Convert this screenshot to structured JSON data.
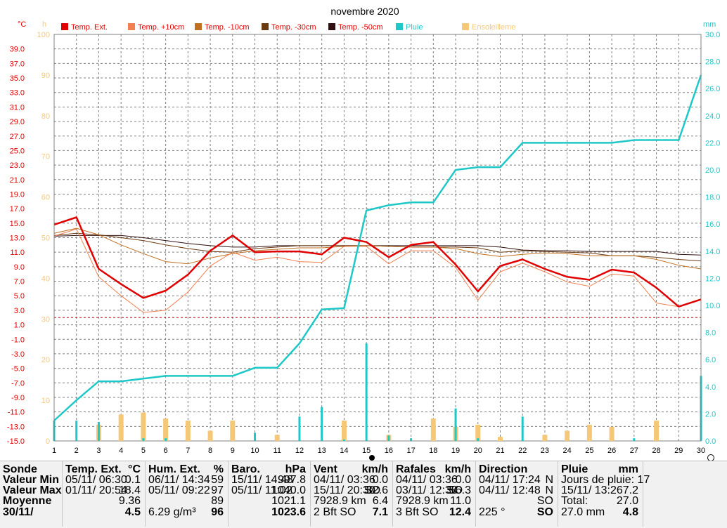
{
  "title": "novembre 2020",
  "colors": {
    "temp_ext": "#e00000",
    "temp_p10": "#f08050",
    "temp_m10": "#c07020",
    "temp_m30": "#6a3a10",
    "temp_m50": "#301010",
    "pluie": "#1ec8c8",
    "soleil": "#f5c878",
    "grid": "#808080",
    "left_axis": "#e00000",
    "sun_axis": "#f5c878",
    "right_axis": "#1ec8c8"
  },
  "axes": {
    "left_unit": "°C",
    "sun_unit": "h",
    "right_unit": "mm",
    "temp_ticks": [
      "39.0",
      "37.0",
      "35.0",
      "33.0",
      "31.0",
      "29.0",
      "27.0",
      "25.0",
      "23.0",
      "21.0",
      "19.0",
      "17.0",
      "15.0",
      "13.0",
      "11.0",
      "9.0",
      "7.0",
      "5.0",
      "3.0",
      "1.0",
      "-1.0",
      "-3.0",
      "-5.0",
      "-7.0",
      "-9.0",
      "-11.0",
      "-13.0",
      "-15.0"
    ],
    "sun_ticks": [
      "100",
      "90",
      "80",
      "70",
      "60",
      "50",
      "40",
      "30",
      "20",
      "10",
      "0"
    ],
    "rain_ticks": [
      "30.0",
      "28.0",
      "26.0",
      "24.0",
      "22.0",
      "20.0",
      "18.0",
      "16.0",
      "14.0",
      "12.0",
      "10.0",
      "8.0",
      "6.0",
      "4.0",
      "2.0",
      "0.0"
    ],
    "x_ticks": [
      "1",
      "2",
      "3",
      "4",
      "5",
      "6",
      "7",
      "8",
      "9",
      "10",
      "11",
      "12",
      "13",
      "14",
      "15",
      "16",
      "17",
      "18",
      "19",
      "20",
      "21",
      "22",
      "23",
      "24",
      "25",
      "26",
      "27",
      "28",
      "29",
      "30"
    ]
  },
  "chart_data": {
    "type": "line",
    "title": "novembre 2020",
    "x": [
      1,
      2,
      3,
      4,
      5,
      6,
      7,
      8,
      9,
      10,
      11,
      12,
      13,
      14,
      15,
      16,
      17,
      18,
      19,
      20,
      21,
      22,
      23,
      24,
      25,
      26,
      27,
      28,
      29,
      30
    ],
    "temp_range": [
      -15,
      41
    ],
    "sun_range": [
      0,
      100
    ],
    "rain_range": [
      0,
      30
    ],
    "legend": [
      "Temp. Ext.",
      "Temp. +10cm",
      "Temp. -10cm",
      "Temp. -30cm",
      "Temp. -50cm",
      "Pluie",
      "Ensoleilleme"
    ],
    "series": [
      {
        "name": "Temp. Ext.",
        "key": "temp_ext",
        "axis": "temp",
        "width": 2.5,
        "values": [
          14.8,
          15.8,
          8.7,
          6.6,
          4.7,
          5.7,
          7.9,
          11.2,
          13.3,
          11.0,
          11.1,
          11.1,
          10.7,
          13.0,
          12.4,
          10.3,
          12.0,
          12.4,
          9.3,
          5.6,
          9.1,
          10.0,
          8.7,
          7.6,
          7.2,
          8.6,
          8.2,
          6.1,
          3.5,
          4.5
        ]
      },
      {
        "name": "Temp. +10cm",
        "key": "temp_p10",
        "axis": "temp",
        "width": 1,
        "values": [
          13.2,
          14.2,
          7.6,
          5.0,
          2.7,
          3.0,
          5.5,
          9.1,
          11.0,
          9.9,
          10.3,
          9.7,
          9.6,
          11.8,
          11.8,
          9.4,
          11.2,
          11.2,
          8.9,
          4.4,
          8.3,
          9.5,
          8.3,
          6.9,
          6.3,
          8.0,
          7.7,
          4.0,
          3.5,
          4.5
        ]
      },
      {
        "name": "Temp. -10cm",
        "key": "temp_m10",
        "axis": "temp",
        "width": 1,
        "values": [
          13.6,
          14.3,
          13.4,
          12.0,
          10.8,
          9.7,
          9.4,
          10.2,
          10.8,
          11.2,
          11.4,
          11.6,
          11.6,
          11.8,
          11.9,
          11.8,
          11.7,
          11.7,
          11.5,
          10.8,
          10.4,
          10.7,
          10.9,
          10.8,
          10.5,
          10.5,
          10.5,
          10.0,
          9.2,
          8.7
        ]
      },
      {
        "name": "Temp. -30cm",
        "key": "temp_m30",
        "axis": "temp",
        "width": 1,
        "values": [
          13.3,
          13.6,
          13.4,
          13.0,
          12.6,
          12.0,
          11.5,
          11.1,
          11.0,
          11.5,
          11.7,
          11.9,
          11.9,
          11.9,
          11.9,
          11.8,
          11.7,
          11.7,
          11.7,
          11.6,
          11.0,
          11.2,
          11.1,
          11.0,
          10.9,
          10.5,
          10.5,
          10.3,
          10.0,
          9.8
        ]
      },
      {
        "name": "Temp. -50cm",
        "key": "temp_m50",
        "axis": "temp",
        "width": 1,
        "values": [
          13.2,
          13.3,
          13.3,
          13.3,
          13.0,
          12.6,
          12.2,
          11.9,
          11.7,
          11.7,
          11.9,
          11.9,
          11.9,
          11.9,
          11.9,
          11.9,
          11.9,
          11.9,
          11.9,
          11.9,
          11.7,
          11.3,
          11.2,
          11.2,
          11.1,
          11.1,
          11.1,
          11.1,
          10.7,
          10.6
        ]
      },
      {
        "name": "Pluie",
        "key": "pluie",
        "axis": "rain",
        "width": 2.5,
        "values": [
          1.5,
          3.0,
          4.4,
          4.4,
          4.6,
          4.8,
          4.8,
          4.8,
          4.8,
          5.4,
          5.4,
          7.2,
          9.7,
          9.8,
          17.0,
          17.4,
          17.6,
          17.6,
          20.0,
          20.2,
          20.2,
          22.0,
          22.0,
          22.0,
          22.0,
          22.0,
          22.2,
          22.2,
          22.2,
          27.0
        ]
      }
    ],
    "daily_rain": [
      1.5,
      1.5,
      1.4,
      0,
      0.2,
      0.2,
      0,
      0,
      0,
      0.6,
      0,
      1.8,
      2.5,
      0.1,
      7.2,
      0.4,
      0.2,
      0,
      2.4,
      0.2,
      0,
      1.8,
      0,
      0,
      0,
      0,
      0.2,
      0,
      0,
      4.8
    ],
    "sunshine_hours": [
      0,
      0,
      4,
      6.5,
      7,
      5.5,
      5,
      2.5,
      5,
      0,
      1.5,
      0,
      0,
      5,
      0,
      1.5,
      0,
      5.5,
      3.5,
      4,
      1,
      0,
      1.5,
      2.5,
      4,
      3.5,
      0,
      5,
      0,
      0
    ],
    "frost_line": 2.0
  },
  "panel": {
    "sonde": {
      "title": "Sonde",
      "rows": [
        "Valeur Min",
        "Valeur Max",
        "Moyenne",
        "30/11/"
      ]
    },
    "temp": {
      "title": "Temp. Ext.",
      "unit": "°C",
      "r1a": "05/11/  06:30",
      "r1b": "0.1",
      "r2a": "01/11/  20:54",
      "r2b": "18.4",
      "r3b": "9.36",
      "r4b": "4.5"
    },
    "hum": {
      "title": "Hum. Ext.",
      "unit": "%",
      "r1a": "06/11/  14:34",
      "r1b": "59",
      "r2a": "05/11/  09:22",
      "r2b": "97",
      "r3b": "89",
      "r4a": "6.29 g/m³",
      "r4b": "96"
    },
    "baro": {
      "title": "Baro.",
      "unit": "hPa",
      "r1a": "15/11/  14:48",
      "r1b": "997.8",
      "r2a": "05/11/  11:02",
      "r2b": "1040.0",
      "r3b": "1021.1",
      "r4b": "1023.6"
    },
    "vent": {
      "title": "Vent",
      "unit": "km/h",
      "r1a": "04/11/  03:36",
      "r1b": "0.0",
      "r2a": "15/11/  20:30",
      "r2m": "SO",
      "r2b": "32.6",
      "r3a": "7928.9 km",
      "r3b": "6.4",
      "r4a": "2 Bft SO",
      "r4b": "7.1"
    },
    "rafales": {
      "title": "Rafales",
      "unit": "km/h",
      "r1a": "04/11/  03:36",
      "r1b": "0.0",
      "r2a": "03/11/  12:30",
      "r2m": "SO",
      "r2b": "56.3",
      "r3a": "7928.9 km",
      "r3b": "11.0",
      "r4a": "3 Bft SO",
      "r4b": "12.4"
    },
    "direction": {
      "title": "Direction",
      "r1a": "04/11/  17:24",
      "r1b": "N",
      "r2a": "04/11/  12:48",
      "r2b": "N",
      "r3b": "SO",
      "r4a": "225 °",
      "r4b": "SO"
    },
    "pluie": {
      "title": "Pluie",
      "unit": "mm",
      "r1a": "Jours de pluie: 17",
      "r2a": "15/11/  13:26",
      "r2b": "7.2",
      "r3a": "Total:",
      "r3b": "27.0",
      "r4a": "27.0 mm",
      "r4b": "4.8"
    }
  }
}
